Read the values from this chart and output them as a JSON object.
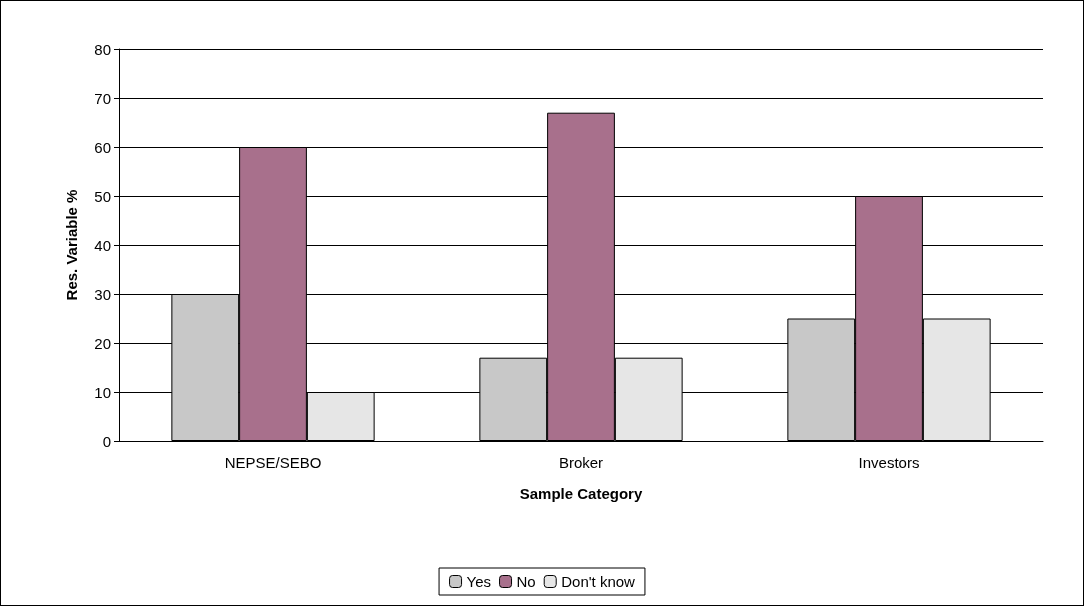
{
  "chart_data": {
    "type": "bar",
    "xlabel": "Sample Category",
    "ylabel": "Res. Variable %",
    "categories": [
      "NEPSE/SEBO",
      "Broker",
      "Investors"
    ],
    "series": [
      {
        "name": "Yes",
        "color": "#c8c8c8",
        "values": [
          30,
          17,
          25
        ]
      },
      {
        "name": "No",
        "color": "#a8708c",
        "values": [
          60,
          67,
          50
        ]
      },
      {
        "name": "Don't know",
        "color": "#e6e6e6",
        "values": [
          10,
          17,
          25
        ]
      }
    ],
    "ylim": [
      0,
      80
    ],
    "yticks": [
      0,
      10,
      20,
      30,
      40,
      50,
      60,
      70,
      80
    ],
    "grid": "y",
    "legend": "bottom"
  }
}
